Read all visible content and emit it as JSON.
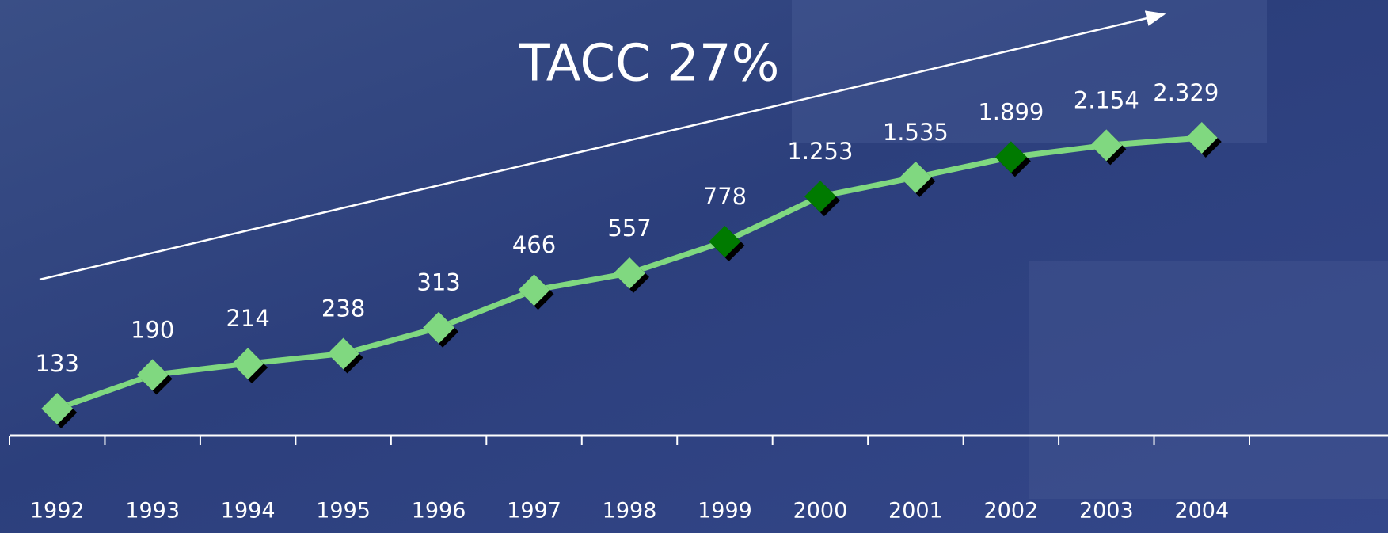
{
  "chart_data": {
    "type": "line",
    "annotation": "TACC 27%",
    "categories": [
      "1992",
      "1993",
      "1994",
      "1995",
      "1996",
      "1997",
      "1998",
      "1999",
      "2000",
      "2001",
      "2002",
      "2003",
      "2004"
    ],
    "series": [
      {
        "color": "#80d880",
        "values": [
          133,
          190,
          214,
          238,
          313,
          466,
          557,
          778,
          1253,
          1535,
          1899,
          2154,
          2329
        ],
        "value_labels": [
          "133",
          "190",
          "214",
          "238",
          "313",
          "466",
          "557",
          "778",
          "1.253",
          "1.535",
          "1.899",
          "2.154",
          "2.329"
        ],
        "marker_colors": [
          "#80d880",
          "#80d880",
          "#80d880",
          "#80d880",
          "#80d880",
          "#80d880",
          "#80d880",
          "#007a00",
          "#007a00",
          "#80d880",
          "#007a00",
          "#80d880",
          "#80d880"
        ]
      }
    ],
    "ylim": [
      100,
      10000
    ],
    "log_scale": true
  }
}
